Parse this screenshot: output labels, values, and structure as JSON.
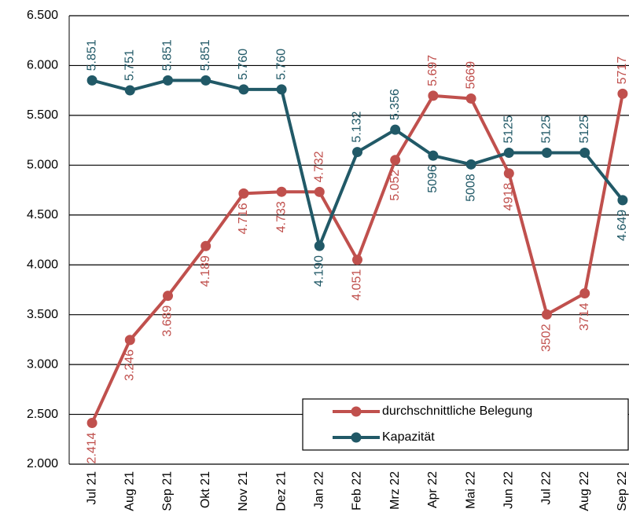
{
  "chart_data": {
    "type": "line",
    "categories": [
      "Jul 21",
      "Aug 21",
      "Sep 21",
      "Okt 21",
      "Nov 21",
      "Dez 21",
      "Jan 22",
      "Feb 22",
      "Mrz 22",
      "Apr 22",
      "Mai 22",
      "Jun 22",
      "Jul 22",
      "Aug 22",
      "Sep 22"
    ],
    "series": [
      {
        "name": "durchschnittliche Belegung",
        "color": "#c0504d",
        "values": [
          2414,
          3246,
          3689,
          4189,
          4716,
          4733,
          4732,
          4051,
          5052,
          5697,
          5669,
          4918,
          3502,
          3714,
          5717
        ],
        "value_labels": [
          "2.414",
          "3.246",
          "3.689",
          "4.189",
          "4.716",
          "4.733",
          "4.732",
          "4.051",
          "5.052",
          "5.697",
          "5669",
          "4918",
          "3502",
          "3714",
          "5717"
        ]
      },
      {
        "name": "Kapazität",
        "color": "#215967",
        "values": [
          5851,
          5751,
          5851,
          5851,
          5760,
          5760,
          4190,
          5132,
          5356,
          5096,
          5008,
          5125,
          5125,
          5125,
          4649
        ],
        "value_labels": [
          "5.851",
          "5.751",
          "5.851",
          "5.851",
          "5.760",
          "5.760",
          "4.190",
          "5.132",
          "5.356",
          "5096",
          "5008",
          "5125",
          "5125",
          "5125",
          "4.649"
        ]
      }
    ],
    "ylim": [
      2000,
      6500
    ],
    "yticks": [
      {
        "value": 2000,
        "label": "2.000"
      },
      {
        "value": 2500,
        "label": "2.500"
      },
      {
        "value": 3000,
        "label": "3.000"
      },
      {
        "value": 3500,
        "label": "3.500"
      },
      {
        "value": 4000,
        "label": "4.000"
      },
      {
        "value": 4500,
        "label": "4.500"
      },
      {
        "value": 5000,
        "label": "5.000"
      },
      {
        "value": 5500,
        "label": "5.500"
      },
      {
        "value": 6000,
        "label": "6.000"
      },
      {
        "value": 6500,
        "label": "6.500"
      }
    ],
    "grid": true,
    "legend": "lower right"
  }
}
